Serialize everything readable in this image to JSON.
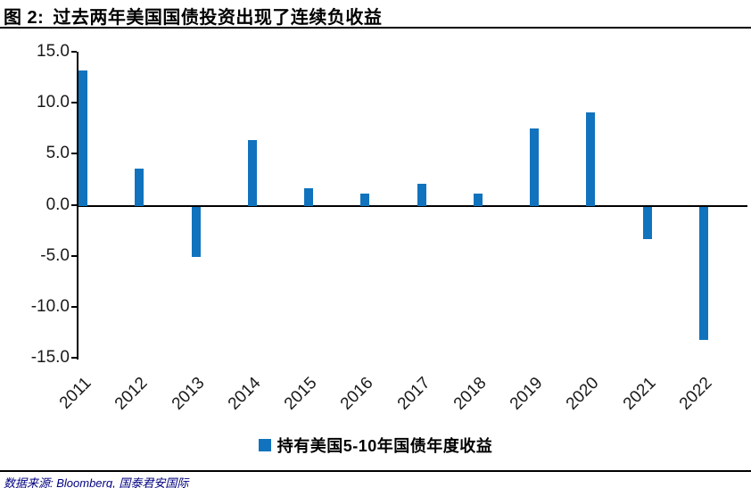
{
  "header": {
    "figure_label": "图 2:",
    "title": "过去两年美国国债投资出现了连续负收益"
  },
  "chart_data": {
    "type": "bar",
    "title": "图 2: 过去两年美国国债投资出现了连续负收益",
    "categories": [
      "2011",
      "2012",
      "2013",
      "2014",
      "2015",
      "2016",
      "2017",
      "2018",
      "2019",
      "2020",
      "2021",
      "2022"
    ],
    "series": [
      {
        "name": "持有美国5-10年国债年度收益",
        "values": [
          13.3,
          3.7,
          -4.9,
          6.5,
          1.8,
          1.2,
          2.2,
          1.2,
          7.6,
          9.2,
          -3.1,
          -13.0
        ]
      }
    ],
    "xlabel": "",
    "ylabel": "",
    "ylim": [
      -15.0,
      15.0
    ],
    "ytick_labels": [
      "15.0",
      "10.0",
      "5.0",
      "0.0",
      "-5.0",
      "-10.0",
      "-15.0"
    ],
    "grid": false,
    "legend_position": "bottom-center",
    "bar_color": "#1173BD",
    "axis_color": "#000000"
  },
  "legend": {
    "label": "持有美国5-10年国债年度收益"
  },
  "footer": {
    "source": "数据来源: Bloomberg, 国泰君安国际",
    "source_color": "#000080"
  }
}
